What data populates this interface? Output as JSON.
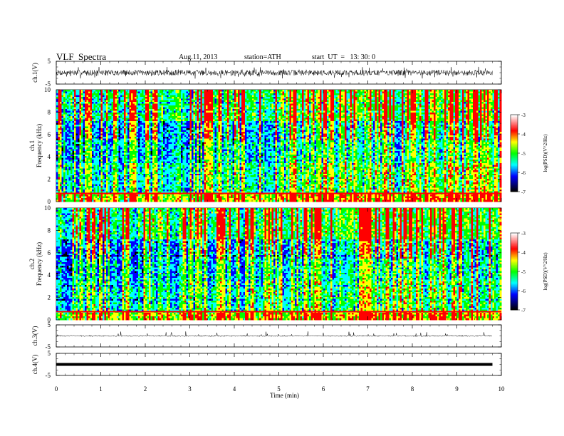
{
  "header": {
    "title": "VLF  Spectra",
    "date": "Aug.11, 2013",
    "station": "station=ATH",
    "start": "start  UT  =   13: 30: 0"
  },
  "chart_data": [
    {
      "type": "line",
      "panel": "ch1-waveform",
      "ylabel": "ch.1(V)",
      "ylim": [
        -5,
        5
      ],
      "yticks": [
        "5",
        "-5"
      ],
      "xlim": [
        0,
        10
      ],
      "data_extent_min": [
        0,
        9.8
      ],
      "description_level": "dense waveform, amplitude roughly ±1.5 V with spikes to ±2.5 V"
    },
    {
      "type": "heatmap",
      "panel": "ch1-spectrogram",
      "ylabel": "ch.1\nFrequency  (kHz)",
      "ylim": [
        0,
        10
      ],
      "yticks": [
        "0",
        "2",
        "4",
        "6",
        "8",
        "10"
      ],
      "xlim": [
        0,
        10
      ],
      "colorbar": {
        "label": "log(PSD)(V^2/Hz)",
        "range": [
          -7,
          -3
        ],
        "ticks": [
          "-3",
          "-4",
          "-5",
          "-6",
          "-7"
        ]
      },
      "seed": 11
    },
    {
      "type": "heatmap",
      "panel": "ch2-spectrogram",
      "ylabel": "ch.2\nFrequency  (kHz)",
      "ylim": [
        0,
        10
      ],
      "yticks": [
        "0",
        "2",
        "4",
        "6",
        "8",
        "10"
      ],
      "xlim": [
        0,
        10
      ],
      "colorbar": {
        "label": "log(PSD)(V^2/Hz)",
        "range": [
          -7,
          -3
        ],
        "ticks": [
          "-3",
          "-4",
          "-5",
          "-6",
          "-7"
        ]
      },
      "seed": 23
    },
    {
      "type": "line",
      "panel": "ch3-waveform",
      "ylabel": "ch.3(V)",
      "ylim": [
        -5,
        5
      ],
      "yticks": [
        "5",
        "-5"
      ],
      "xlim": [
        0,
        10
      ]
    },
    {
      "type": "line",
      "panel": "ch4-waveform",
      "ylabel": "ch.4(V)",
      "ylim": [
        -5,
        5
      ],
      "yticks": [
        "5",
        "-5"
      ],
      "xlim": [
        0,
        10
      ],
      "constant_level": 0
    }
  ],
  "xaxis": {
    "label": "Time  (min)",
    "ticks": [
      "0",
      "1",
      "2",
      "3",
      "4",
      "5",
      "6",
      "7",
      "8",
      "9",
      "10"
    ]
  },
  "colors": {
    "palette": [
      "#000000",
      "#0000ff",
      "#00ffff",
      "#00ff00",
      "#ffff00",
      "#ff0000",
      "#ffffff"
    ]
  }
}
